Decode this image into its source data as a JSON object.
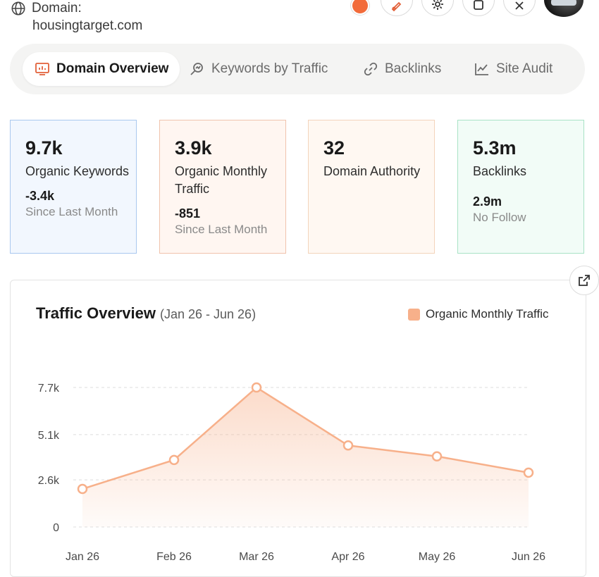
{
  "header": {
    "domain_label": "Domain:",
    "domain_value": "housingtarget.com"
  },
  "tabs": [
    {
      "label": "Domain Overview",
      "icon": "monitor-chart-icon",
      "active": true
    },
    {
      "label": "Keywords by Traffic",
      "icon": "keyword-search-icon",
      "active": false
    },
    {
      "label": "Backlinks",
      "icon": "link-icon",
      "active": false
    },
    {
      "label": "Site Audit",
      "icon": "line-chart-icon",
      "active": false
    }
  ],
  "cards": [
    {
      "value": "9.7k",
      "label": "Organic Keywords",
      "delta": "-3.4k",
      "sub": "Since Last Month"
    },
    {
      "value": "3.9k",
      "label": "Organic Monthly Traffic",
      "delta": "-851",
      "sub": "Since Last Month"
    },
    {
      "value": "32",
      "label": "Domain Authority"
    },
    {
      "value": "5.3m",
      "label": "Backlinks",
      "delta": "2.9m",
      "sub": "No Follow"
    }
  ],
  "chart": {
    "title": "Traffic Overview",
    "range": "(Jan 26 - Jun 26)",
    "legend": "Organic Monthly Traffic",
    "color": "#f7b08a"
  },
  "chart_data": {
    "type": "area",
    "title": "Traffic Overview",
    "subtitle": "(Jan 26 - Jun 26)",
    "categories": [
      "Jan 26",
      "Feb 26",
      "Mar 26",
      "Apr 26",
      "May 26",
      "Jun 26"
    ],
    "series": [
      {
        "name": "Organic Monthly Traffic",
        "values": [
          2100,
          3700,
          7700,
          4500,
          3900,
          3000
        ]
      }
    ],
    "y_ticks": [
      "0",
      "2.6k",
      "5.1k",
      "7.7k"
    ],
    "y_tick_values": [
      0,
      2600,
      5100,
      7700
    ],
    "ylim": [
      0,
      7700
    ],
    "grid": true,
    "legend_position": "top-right"
  }
}
